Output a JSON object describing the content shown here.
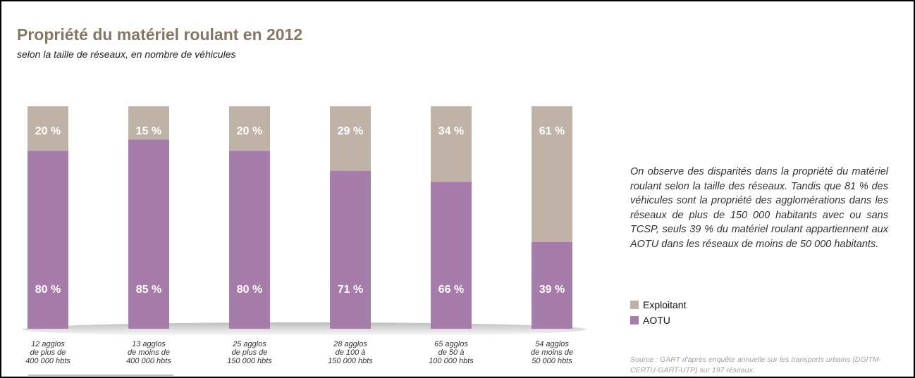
{
  "header": {
    "title": "Propriété du matériel roulant en 2012",
    "subtitle": "selon la taille de réseaux, en nombre de véhicules"
  },
  "description": "On observe des disparités dans la propriété du matériel roulant selon la taille des réseaux. Tandis que 81 % des véhicules sont la propriété des agglomérations dans les réseaux de plus de 150 000 habitants avec ou sans TCSP, seuls 39 % du matériel roulant appartiennent aux AOTU dans les réseaux de moins de 50 000 habitants.",
  "legend": {
    "items": [
      {
        "label": "Exploitant",
        "color": "#bfb3a8"
      },
      {
        "label": "AOTU",
        "color": "#a67daa"
      }
    ]
  },
  "source": "Source : GART d'après enquête annuelle sur les transports urbains (DGITM-CERTU-GART-UTP) sur 197 réseaux.",
  "chart_data": {
    "type": "bar",
    "stacked": true,
    "percent": true,
    "title": "Propriété du matériel roulant en 2012",
    "subtitle": "selon la taille de réseaux, en nombre de véhicules",
    "ylim": [
      0,
      100
    ],
    "grid": false,
    "legend_position": "right",
    "categories": [
      [
        "12 agglos",
        "de plus de",
        "400 000 hbts"
      ],
      [
        "13 agglos",
        "de moins de",
        "400 000 hbts"
      ],
      [
        "25 agglos",
        "de plus de",
        "150 000 hbts"
      ],
      [
        "28 agglos",
        "de 100 à",
        "150 000 hbts"
      ],
      [
        "65 agglos",
        "de 50 à",
        "100 000 hbts"
      ],
      [
        "54 agglos",
        "de moins de",
        "50 000 hbts"
      ]
    ],
    "series": [
      {
        "name": "AOTU",
        "color": "#a67daa",
        "values": [
          80,
          85,
          80,
          71,
          66,
          39
        ],
        "labels": [
          "80 %",
          "85 %",
          "80 %",
          "71 %",
          "66 %",
          "39 %"
        ]
      },
      {
        "name": "Exploitant",
        "color": "#bfb3a8",
        "values": [
          20,
          15,
          20,
          29,
          34,
          61
        ],
        "labels": [
          "20 %",
          "15 %",
          "20 %",
          "29 %",
          "34 %",
          "61 %"
        ]
      }
    ]
  }
}
